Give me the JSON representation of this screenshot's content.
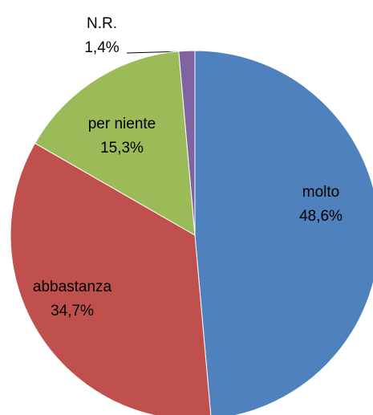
{
  "chart_data": {
    "type": "pie",
    "categories": [
      "molto",
      "abbastanza",
      "per niente",
      "N.R."
    ],
    "values": [
      48.6,
      34.7,
      15.3,
      1.4
    ],
    "value_labels": [
      "48,6%",
      "34,7%",
      "15,3%",
      "1,4%"
    ],
    "colors": [
      "#4f81bd",
      "#c0504d",
      "#9bbb59",
      "#8064a2"
    ]
  }
}
